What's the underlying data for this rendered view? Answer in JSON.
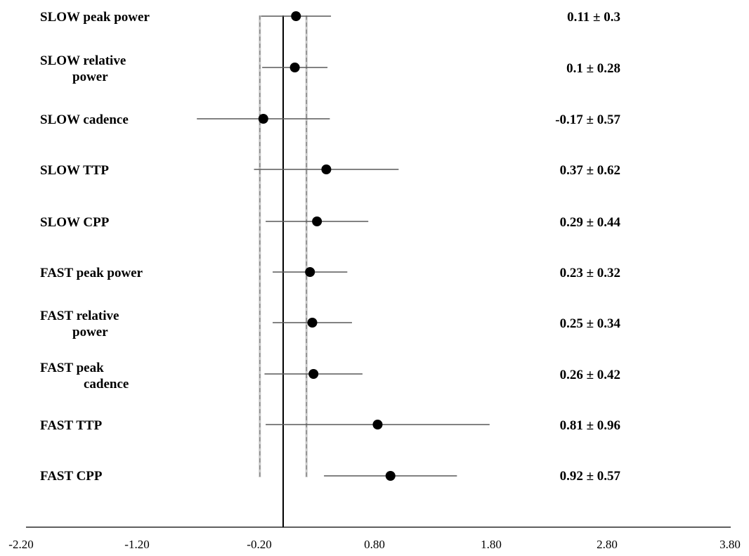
{
  "chart_data": {
    "type": "forest",
    "x_ticks": [
      "-2.20",
      "-1.20",
      "-0.20",
      "0.80",
      "1.80",
      "2.80",
      "3.80"
    ],
    "x_range": [
      -2.2,
      3.8
    ],
    "reference_line": 0,
    "dashed_lines": [
      -0.2,
      0.2
    ],
    "items": [
      {
        "line1": "SLOW peak power",
        "line2": "",
        "mean": 0.11,
        "ci": 0.3,
        "label": "0.11 ± 0.3"
      },
      {
        "line1": "SLOW relative",
        "line2": "power",
        "mean": 0.1,
        "ci": 0.28,
        "label": "0.1 ± 0.28"
      },
      {
        "line1": "SLOW cadence",
        "line2": "",
        "mean": -0.17,
        "ci": 0.57,
        "label": "-0.17 ± 0.57"
      },
      {
        "line1": "SLOW TTP",
        "line2": "",
        "mean": 0.37,
        "ci": 0.62,
        "label": "0.37 ± 0.62"
      },
      {
        "line1": "SLOW CPP",
        "line2": "",
        "mean": 0.29,
        "ci": 0.44,
        "label": "0.29 ± 0.44"
      },
      {
        "line1": "FAST peak power",
        "line2": "",
        "mean": 0.23,
        "ci": 0.32,
        "label": "0.23 ± 0.32"
      },
      {
        "line1": "FAST relative",
        "line2": "power",
        "mean": 0.25,
        "ci": 0.34,
        "label": "0.25 ± 0.34"
      },
      {
        "line1": "FAST peak",
        "line2": "cadence",
        "mean": 0.26,
        "ci": 0.42,
        "label": "0.26 ± 0.42"
      },
      {
        "line1": "FAST TTP",
        "line2": "",
        "mean": 0.81,
        "ci": 0.96,
        "label": "0.81 ± 0.96"
      },
      {
        "line1": "FAST CPP",
        "line2": "",
        "mean": 0.92,
        "ci": 0.57,
        "label": "0.92 ± 0.57"
      }
    ]
  }
}
